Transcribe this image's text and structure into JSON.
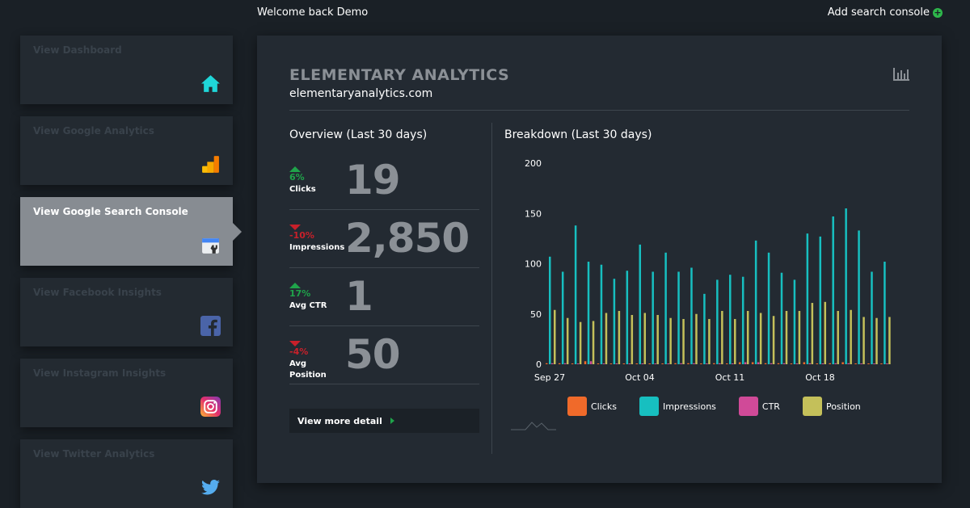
{
  "header": {
    "welcome": "Welcome back Demo",
    "add_label": "Add search console"
  },
  "sidebar": {
    "items": [
      {
        "label": "View Dashboard",
        "icon": "home-icon"
      },
      {
        "label": "View Google Analytics",
        "icon": "google-analytics-icon"
      },
      {
        "label": "View Google Search Console",
        "icon": "search-console-icon",
        "active": true
      },
      {
        "label": "View Facebook Insights",
        "icon": "facebook-icon"
      },
      {
        "label": "View Instagram Insights",
        "icon": "instagram-icon"
      },
      {
        "label": "View Twitter Analytics",
        "icon": "twitter-icon"
      }
    ]
  },
  "card": {
    "title": "ELEMENTARY ANALYTICS",
    "domain": "elementaryanalytics.com",
    "overview_title": "Overview (Last 30 days)",
    "breakdown_title": "Breakdown (Last 30 days)",
    "more_label": "View more detail"
  },
  "stats": [
    {
      "name": "Clicks",
      "change": "6%",
      "direction": "up",
      "value": "19"
    },
    {
      "name": "Impressions",
      "change": "-10%",
      "direction": "down",
      "value": "2,850"
    },
    {
      "name": "Avg CTR",
      "change": "17%",
      "direction": "up",
      "value": "1"
    },
    {
      "name": "Avg Position",
      "change": "-4%",
      "direction": "down",
      "value": "50"
    }
  ],
  "colors": {
    "up": "#1fa34a",
    "down": "#c8202a",
    "clicks": "#f06a2a",
    "impressions": "#17bfc0",
    "ctr": "#d04a98",
    "position": "#c4c05a"
  },
  "chart_data": {
    "type": "bar",
    "ylim": [
      0,
      200
    ],
    "yticks": [
      "0",
      "50",
      "100",
      "150",
      "200"
    ],
    "xtick_labels": [
      "Sep 27",
      "Oct 04",
      "Oct 11",
      "Oct 18"
    ],
    "legend_placement": "bottom",
    "series": [
      {
        "name": "Clicks",
        "values": [
          1,
          1,
          0,
          3,
          0,
          0,
          0,
          0,
          0,
          0,
          1,
          1,
          0,
          1,
          0,
          2,
          2,
          1,
          1,
          0,
          2,
          0,
          1,
          2,
          0,
          0,
          0
        ]
      },
      {
        "name": "Impressions",
        "values": [
          107,
          92,
          138,
          102,
          99,
          85,
          93,
          119,
          92,
          111,
          92,
          96,
          70,
          84,
          89,
          87,
          123,
          111,
          91,
          84,
          130,
          127,
          147,
          155,
          133,
          92,
          102
        ]
      },
      {
        "name": "CTR",
        "values": [
          1,
          1,
          0,
          3,
          0,
          0,
          0,
          0,
          0,
          0,
          1,
          1,
          0,
          1,
          0,
          2,
          2,
          1,
          1,
          0,
          1,
          0,
          1,
          1,
          0,
          0,
          0
        ]
      },
      {
        "name": "Position",
        "values": [
          54,
          46,
          42,
          43,
          51,
          53,
          49,
          51,
          49,
          46,
          45,
          50,
          45,
          53,
          45,
          53,
          51,
          48,
          53,
          53,
          61,
          62,
          53,
          54,
          47,
          46,
          47
        ]
      }
    ]
  }
}
